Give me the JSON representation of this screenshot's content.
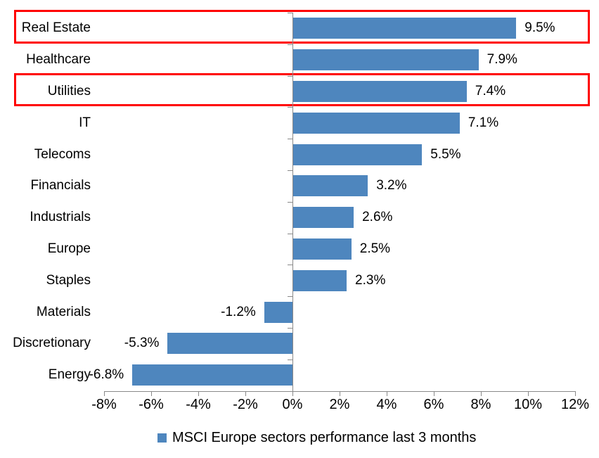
{
  "chart_data": {
    "type": "bar",
    "orientation": "horizontal",
    "categories": [
      "Real Estate",
      "Healthcare",
      "Utilities",
      "IT",
      "Telecoms",
      "Financials",
      "Industrials",
      "Europe",
      "Staples",
      "Materials",
      "Discretionary",
      "Energy"
    ],
    "values": [
      9.5,
      7.9,
      7.4,
      7.1,
      5.5,
      3.2,
      2.6,
      2.5,
      2.3,
      -1.2,
      -5.3,
      -6.8
    ],
    "data_labels": [
      "9.5%",
      "7.9%",
      "7.4%",
      "7.1%",
      "5.5%",
      "3.2%",
      "2.6%",
      "2.5%",
      "2.3%",
      "-1.2%",
      "-5.3%",
      "-6.8%"
    ],
    "x_ticks": [
      "-8%",
      "-6%",
      "-4%",
      "-2%",
      "0%",
      "2%",
      "4%",
      "6%",
      "8%",
      "10%",
      "12%"
    ],
    "x_tick_values": [
      -8,
      -6,
      -4,
      -2,
      0,
      2,
      4,
      6,
      8,
      10,
      12
    ],
    "xlim": [
      -8,
      12
    ],
    "grid": false,
    "legend": "MSCI Europe sectors performance last 3 months",
    "legend_position": "bottom",
    "highlighted_categories": [
      "Real Estate",
      "Utilities"
    ],
    "bar_color": "#4E86BE",
    "highlight_box_color": "#FF0000",
    "axis_color": "#898989",
    "text_color": "#000000"
  }
}
